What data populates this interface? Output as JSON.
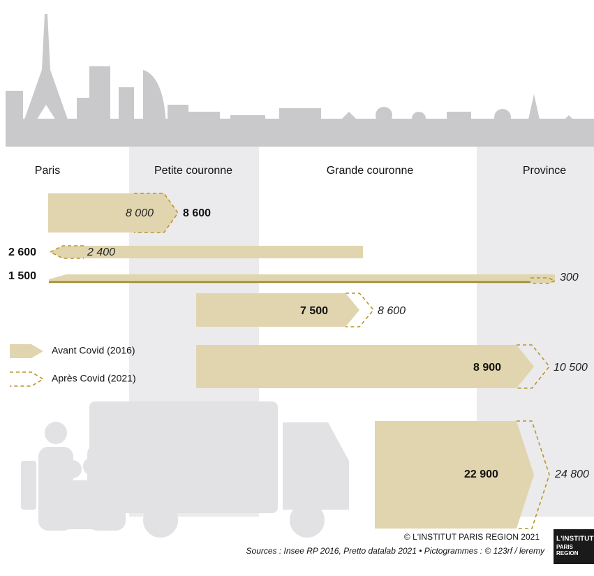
{
  "columns": [
    "Paris",
    "Petite couronne",
    "Grande couronne",
    "Province"
  ],
  "flows": [
    {
      "before": "8 600",
      "after": "8 000"
    },
    {
      "before": "2 600",
      "after": "2 400"
    },
    {
      "before": "1 500",
      "after": "300"
    },
    {
      "before": "7 500",
      "after": "8 600"
    },
    {
      "before": "8 900",
      "after": "10 500"
    },
    {
      "before": "22 900",
      "after": "24 800"
    }
  ],
  "legend": [
    "Avant Covid (2016)",
    "Après Covid (2021)"
  ],
  "footer": {
    "credit": "© L'INSTITUT PARIS REGION 2021",
    "sources": "Sources : Insee RP 2016, Pretto datalab 2021  •  Pictogrammes : © 123rf / leremy"
  },
  "logo": [
    "L'INSTITUT",
    "PARIS",
    "REGION"
  ]
}
